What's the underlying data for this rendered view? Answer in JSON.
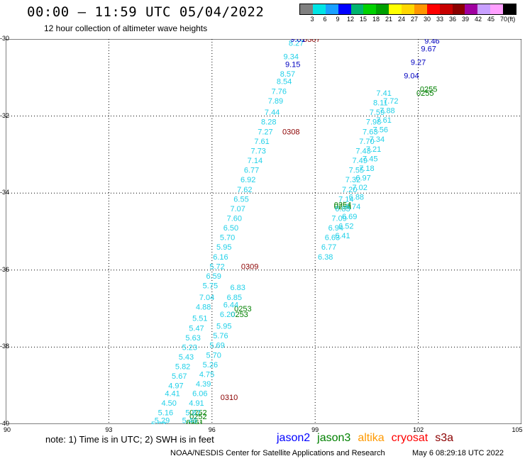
{
  "header": {
    "title": "00:00 – 11:59 UTC 05/04/2022",
    "subtitle": "12 hour collection of altimeter wave heights"
  },
  "legend": {
    "colors": [
      "#808080",
      "#00e5e5",
      "#19a0ff",
      "#0000ff",
      "#00b46e",
      "#00d200",
      "#00a000",
      "#ffff00",
      "#ffd700",
      "#ff9600",
      "#ff0000",
      "#c80000",
      "#8b0000",
      "#a000a0",
      "#c8a0ff",
      "#ffa0ff",
      "#000000"
    ],
    "labels": [
      "3",
      "6",
      "9",
      "12",
      "15",
      "18",
      "21",
      "24",
      "27",
      "30",
      "33",
      "36",
      "39",
      "42",
      "45",
      "70",
      "(ft)"
    ]
  },
  "axes": {
    "x_ticks": [
      "90",
      "93",
      "96",
      "99",
      "102",
      "105"
    ],
    "y_ticks": [
      "-30",
      "-32",
      "-34",
      "-36",
      "-38",
      "-40"
    ]
  },
  "chart_data": {
    "type": "map-track-labels",
    "x_range": [
      90,
      105
    ],
    "y_range": [
      -40,
      -30
    ],
    "grid": true,
    "tracks": [
      {
        "color": "#8b0000",
        "points": [
          {
            "x": 98.9,
            "y": -30.0,
            "label": "0307"
          },
          {
            "x": 98.3,
            "y": -32.4,
            "label": "0308"
          },
          {
            "x": 97.1,
            "y": -35.9,
            "label": "0309"
          },
          {
            "x": 96.5,
            "y": -39.3,
            "label": "0310"
          }
        ]
      },
      {
        "color": "#008000",
        "points": [
          {
            "x": 102.3,
            "y": -31.3,
            "label": "0255"
          },
          {
            "x": 102.2,
            "y": -31.4,
            "label": "0255"
          },
          {
            "x": 99.8,
            "y": -34.3,
            "label": "0254"
          },
          {
            "x": 99.8,
            "y": -34.35,
            "label": "0254"
          },
          {
            "x": 96.9,
            "y": -37.0,
            "label": "0253"
          },
          {
            "x": 96.8,
            "y": -37.15,
            "label": "0253"
          },
          {
            "x": 95.6,
            "y": -39.7,
            "label": "0252"
          },
          {
            "x": 95.6,
            "y": -39.8,
            "label": "0252"
          },
          {
            "x": 95.5,
            "y": -39.95,
            "label": "0251"
          },
          {
            "x": 95.5,
            "y": -40.0,
            "label": "0251"
          }
        ]
      },
      {
        "color": "#20d0e8",
        "points": [
          {
            "x": 98.45,
            "y": -30.1,
            "label": "8.27"
          },
          {
            "x": 98.3,
            "y": -30.45,
            "label": "9.34"
          },
          {
            "x": 98.2,
            "y": -30.9,
            "label": "8.57"
          },
          {
            "x": 98.1,
            "y": -31.1,
            "label": "8.54"
          },
          {
            "x": 97.95,
            "y": -31.35,
            "label": "7.76"
          },
          {
            "x": 97.85,
            "y": -31.6,
            "label": "7.89"
          },
          {
            "x": 97.75,
            "y": -31.9,
            "label": "7.44"
          },
          {
            "x": 97.65,
            "y": -32.15,
            "label": "8.28"
          },
          {
            "x": 97.55,
            "y": -32.4,
            "label": "7.27"
          },
          {
            "x": 97.45,
            "y": -32.65,
            "label": "7.61"
          },
          {
            "x": 97.35,
            "y": -32.9,
            "label": "7.73"
          },
          {
            "x": 97.25,
            "y": -33.15,
            "label": "7.14"
          },
          {
            "x": 97.15,
            "y": -33.4,
            "label": "6.77"
          },
          {
            "x": 97.05,
            "y": -33.65,
            "label": "6.92"
          },
          {
            "x": 96.95,
            "y": -33.9,
            "label": "7.62"
          },
          {
            "x": 96.85,
            "y": -34.15,
            "label": "6.55"
          },
          {
            "x": 96.75,
            "y": -34.4,
            "label": "7.07"
          },
          {
            "x": 96.65,
            "y": -34.65,
            "label": "7.60"
          },
          {
            "x": 96.55,
            "y": -34.9,
            "label": "6.50"
          },
          {
            "x": 96.45,
            "y": -35.15,
            "label": "5.70"
          },
          {
            "x": 96.35,
            "y": -35.4,
            "label": "5.95"
          },
          {
            "x": 96.25,
            "y": -35.65,
            "label": "6.16"
          },
          {
            "x": 96.15,
            "y": -35.9,
            "label": "5.72"
          },
          {
            "x": 96.05,
            "y": -36.15,
            "label": "6.59"
          },
          {
            "x": 95.95,
            "y": -36.4,
            "label": "5.75"
          },
          {
            "x": 95.85,
            "y": -36.7,
            "label": "7.04"
          },
          {
            "x": 95.75,
            "y": -36.95,
            "label": "4.88"
          },
          {
            "x": 95.65,
            "y": -37.25,
            "label": "5.51"
          },
          {
            "x": 95.55,
            "y": -37.5,
            "label": "5.47"
          },
          {
            "x": 95.45,
            "y": -37.75,
            "label": "5.63"
          },
          {
            "x": 95.35,
            "y": -38.0,
            "label": "5.23"
          },
          {
            "x": 95.25,
            "y": -38.25,
            "label": "5.43"
          },
          {
            "x": 95.15,
            "y": -38.5,
            "label": "5.82"
          },
          {
            "x": 95.05,
            "y": -38.75,
            "label": "5.67"
          },
          {
            "x": 94.95,
            "y": -39.0,
            "label": "4.97"
          },
          {
            "x": 94.85,
            "y": -39.2,
            "label": "4.41"
          },
          {
            "x": 94.75,
            "y": -39.45,
            "label": "4.50"
          },
          {
            "x": 94.65,
            "y": -39.7,
            "label": "5.16"
          },
          {
            "x": 94.55,
            "y": -39.9,
            "label": "5.29"
          },
          {
            "x": 94.45,
            "y": -40.0,
            "label": "5.03"
          },
          {
            "x": 96.75,
            "y": -36.45,
            "label": "6.83"
          },
          {
            "x": 96.65,
            "y": -36.7,
            "label": "6.85"
          },
          {
            "x": 96.55,
            "y": -36.9,
            "label": "6.44"
          },
          {
            "x": 96.45,
            "y": -37.15,
            "label": "6.20"
          },
          {
            "x": 96.35,
            "y": -37.45,
            "label": "5.95"
          },
          {
            "x": 96.25,
            "y": -37.7,
            "label": "5.76"
          },
          {
            "x": 96.15,
            "y": -37.95,
            "label": "5.69"
          },
          {
            "x": 96.05,
            "y": -38.2,
            "label": "5.70"
          },
          {
            "x": 95.95,
            "y": -38.45,
            "label": "5.26"
          },
          {
            "x": 95.85,
            "y": -38.7,
            "label": "4.75"
          },
          {
            "x": 95.75,
            "y": -38.95,
            "label": "4.39"
          },
          {
            "x": 95.65,
            "y": -39.2,
            "label": "6.06"
          },
          {
            "x": 95.55,
            "y": -39.45,
            "label": "4.91"
          },
          {
            "x": 95.45,
            "y": -39.7,
            "label": "5.87"
          },
          {
            "x": 95.35,
            "y": -39.9,
            "label": "5.46"
          },
          {
            "x": 101.0,
            "y": -31.4,
            "label": "7.41"
          },
          {
            "x": 100.9,
            "y": -31.65,
            "label": "8.11"
          },
          {
            "x": 100.8,
            "y": -31.9,
            "label": "7.59"
          },
          {
            "x": 100.7,
            "y": -32.15,
            "label": "7.98"
          },
          {
            "x": 100.6,
            "y": -32.4,
            "label": "7.63"
          },
          {
            "x": 100.5,
            "y": -32.65,
            "label": "7.70"
          },
          {
            "x": 100.4,
            "y": -32.9,
            "label": "7.43"
          },
          {
            "x": 100.3,
            "y": -33.15,
            "label": "7.49"
          },
          {
            "x": 100.2,
            "y": -33.4,
            "label": "7.55"
          },
          {
            "x": 100.1,
            "y": -33.65,
            "label": "7.32"
          },
          {
            "x": 100.0,
            "y": -33.9,
            "label": "7.20"
          },
          {
            "x": 99.9,
            "y": -34.15,
            "label": "7.14"
          },
          {
            "x": 99.8,
            "y": -34.4,
            "label": "6.83"
          },
          {
            "x": 99.7,
            "y": -34.65,
            "label": "7.09"
          },
          {
            "x": 99.6,
            "y": -34.9,
            "label": "6.94"
          },
          {
            "x": 99.5,
            "y": -35.15,
            "label": "6.63"
          },
          {
            "x": 99.4,
            "y": -35.4,
            "label": "6.77"
          },
          {
            "x": 99.3,
            "y": -35.65,
            "label": "6.38"
          },
          {
            "x": 101.2,
            "y": -31.6,
            "label": "7.72"
          },
          {
            "x": 101.1,
            "y": -31.85,
            "label": "7.88"
          },
          {
            "x": 101.0,
            "y": -32.1,
            "label": "7.61"
          },
          {
            "x": 100.9,
            "y": -32.35,
            "label": "7.56"
          },
          {
            "x": 100.8,
            "y": -32.6,
            "label": "7.34"
          },
          {
            "x": 100.7,
            "y": -32.85,
            "label": "7.21"
          },
          {
            "x": 100.6,
            "y": -33.1,
            "label": "7.45"
          },
          {
            "x": 100.5,
            "y": -33.35,
            "label": "7.18"
          },
          {
            "x": 100.4,
            "y": -33.6,
            "label": "6.97"
          },
          {
            "x": 100.3,
            "y": -33.85,
            "label": "7.02"
          },
          {
            "x": 100.2,
            "y": -34.1,
            "label": "6.88"
          },
          {
            "x": 100.1,
            "y": -34.35,
            "label": "6.74"
          },
          {
            "x": 100.0,
            "y": -34.6,
            "label": "6.69"
          },
          {
            "x": 99.9,
            "y": -34.85,
            "label": "6.52"
          },
          {
            "x": 99.8,
            "y": -35.1,
            "label": "6.41"
          }
        ]
      },
      {
        "color": "#0000c0",
        "points": [
          {
            "x": 98.5,
            "y": -30.0,
            "label": "9.01"
          },
          {
            "x": 98.35,
            "y": -30.65,
            "label": "9.15"
          },
          {
            "x": 102.4,
            "y": -30.05,
            "label": "9.46"
          },
          {
            "x": 102.3,
            "y": -30.25,
            "label": "9.67"
          },
          {
            "x": 102.0,
            "y": -30.6,
            "label": "9.27"
          },
          {
            "x": 101.8,
            "y": -30.95,
            "label": "9.04"
          }
        ]
      }
    ]
  },
  "footer": {
    "note": "note:  1) Time is in UTC;  2) SWH is in feet",
    "satellites": [
      {
        "name": "jason2",
        "color": "#0000ff"
      },
      {
        "name": "jason3",
        "color": "#008000"
      },
      {
        "name": "altika",
        "color": "#ff9900"
      },
      {
        "name": "cryosat",
        "color": "#ff0000"
      },
      {
        "name": "s3a",
        "color": "#8b0000"
      }
    ],
    "credit": "NOAA/NESDIS Center for Satellite Applications and Research",
    "timestamp": "May  6 08:29:18 UTC 2022"
  }
}
